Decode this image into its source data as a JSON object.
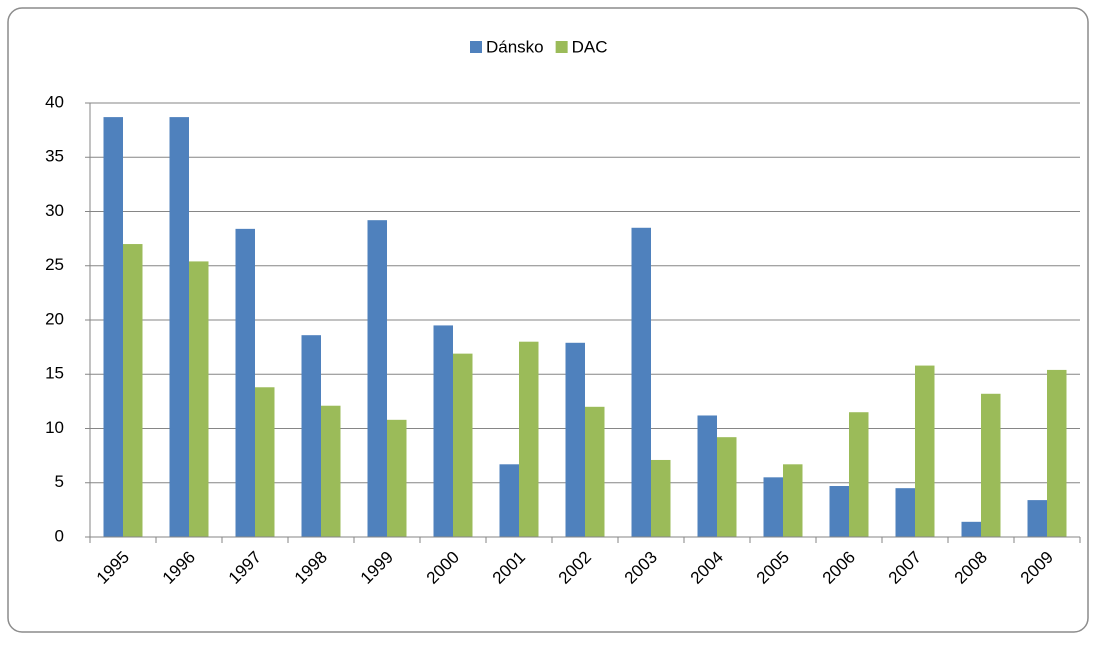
{
  "chart_data": {
    "type": "bar",
    "categories": [
      "1995",
      "1996",
      "1997",
      "1998",
      "1999",
      "2000",
      "2001",
      "2002",
      "2003",
      "2004",
      "2005",
      "2006",
      "2007",
      "2008",
      "2009"
    ],
    "series": [
      {
        "name": "Dánsko",
        "color": "#4f81bd",
        "values": [
          38.7,
          38.7,
          28.4,
          18.6,
          29.2,
          19.5,
          6.7,
          17.9,
          28.5,
          11.2,
          5.5,
          4.7,
          4.5,
          1.4,
          3.4
        ]
      },
      {
        "name": "DAC",
        "color": "#9bbb59",
        "values": [
          27.0,
          25.4,
          13.8,
          12.1,
          10.8,
          16.9,
          18.0,
          12.0,
          7.1,
          9.2,
          6.7,
          11.5,
          15.8,
          13.2,
          15.4
        ]
      }
    ],
    "ylim": [
      0,
      40
    ],
    "yticks": [
      0,
      5,
      10,
      15,
      20,
      25,
      30,
      35,
      40
    ],
    "grid": true,
    "legend": "top"
  }
}
